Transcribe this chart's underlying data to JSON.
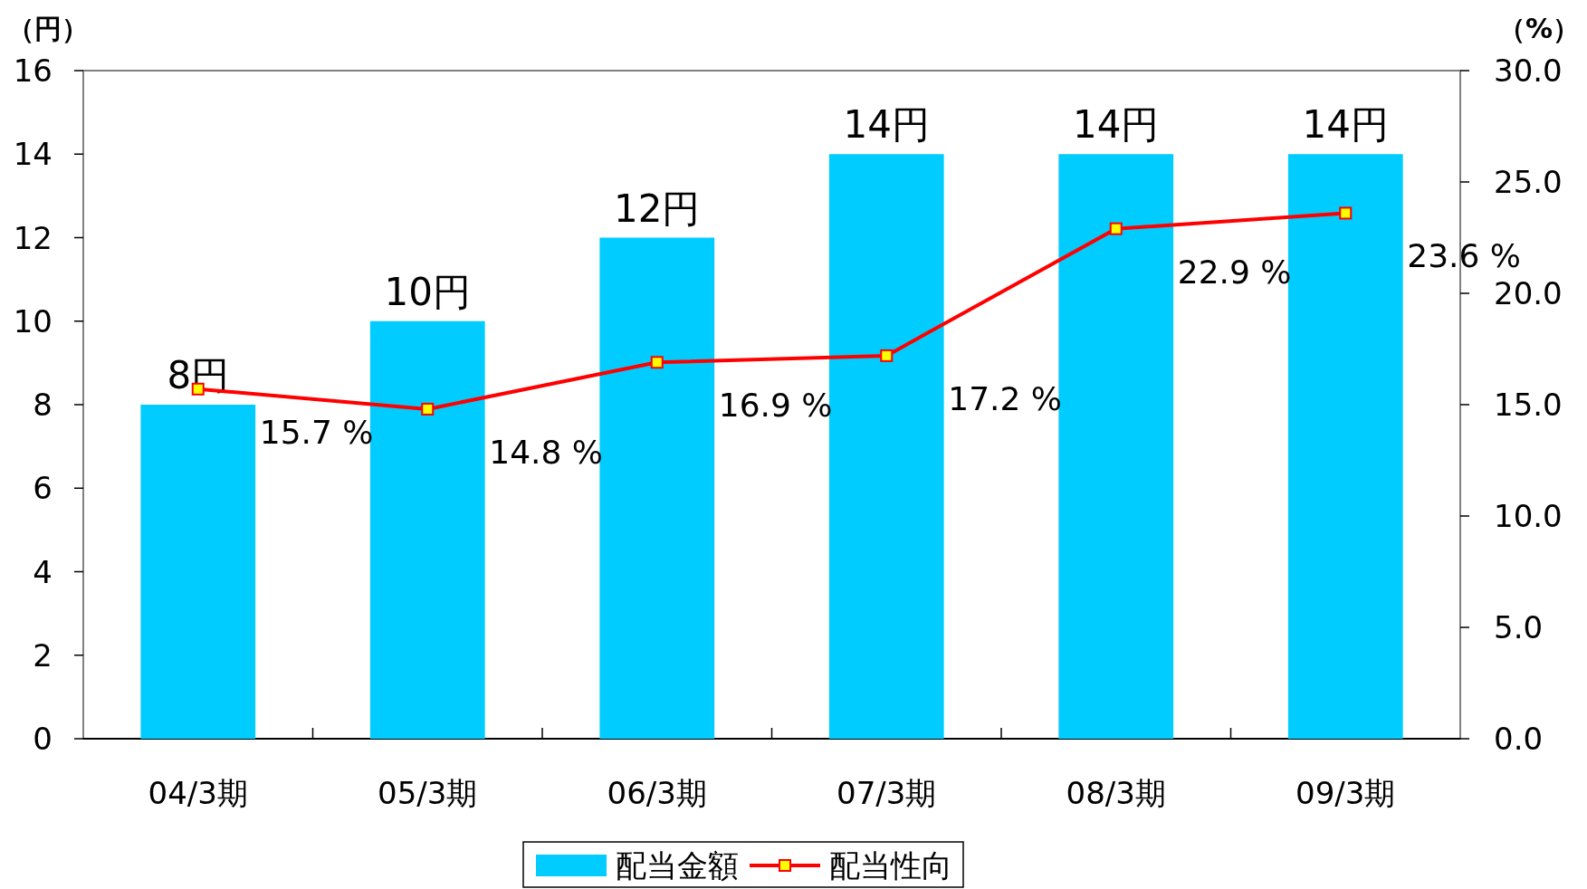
{
  "chart_data": {
    "type": "bar",
    "categories": [
      "04/3期",
      "05/3期",
      "06/3期",
      "07/3期",
      "08/3期",
      "09/3期"
    ],
    "ylabel": "（円）",
    "y2label": "（%）",
    "ylim": [
      0,
      16
    ],
    "yticks": [
      0,
      2,
      4,
      6,
      8,
      10,
      12,
      14,
      16
    ],
    "y2lim": [
      0,
      30
    ],
    "y2ticks": [
      {
        "value": 0,
        "label": "0.0"
      },
      {
        "value": 5,
        "label": "5.0"
      },
      {
        "value": 10,
        "label": "10.0"
      },
      {
        "value": 15,
        "label": "15.0"
      },
      {
        "value": 20,
        "label": "20.0"
      },
      {
        "value": 25,
        "label": "25.0"
      },
      {
        "value": 30,
        "label": "30.0"
      }
    ],
    "series": [
      {
        "name": "配当金額",
        "color": "#00ccff",
        "values": [
          8,
          10,
          12,
          14,
          14,
          14
        ],
        "value_labels": [
          "8円",
          "10円",
          "12円",
          "14円",
          "14円",
          "14円"
        ]
      },
      {
        "name": "配当性向",
        "type": "line",
        "axis": "y2",
        "color": "#ff0000",
        "marker": "square",
        "values": [
          15.7,
          14.8,
          16.9,
          17.2,
          22.9,
          23.6
        ],
        "value_labels": [
          "15.7 %",
          "14.8 %",
          "16.9 %",
          "17.2 %",
          "22.9 %",
          "23.6 %"
        ]
      }
    ],
    "legend": "bottom"
  }
}
